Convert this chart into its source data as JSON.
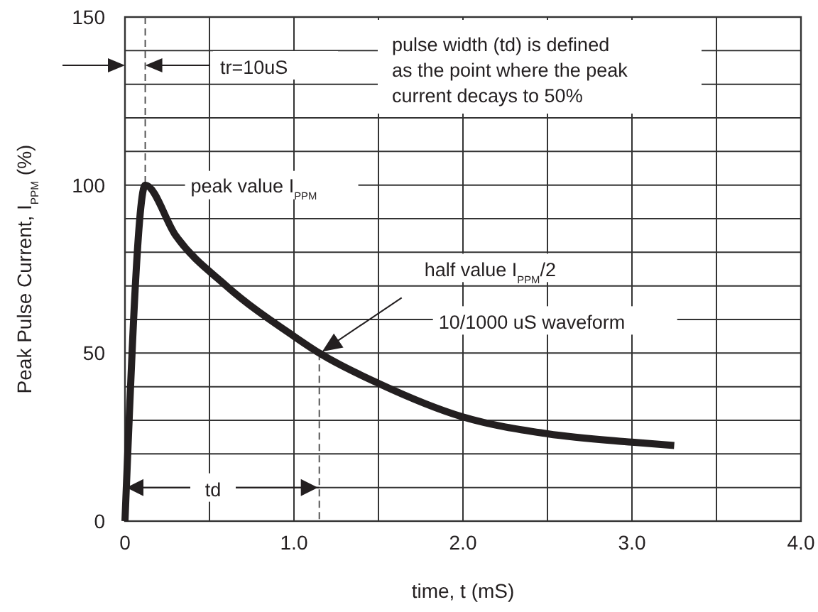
{
  "chart_data": {
    "type": "line",
    "xlabel": "time, t (mS)",
    "ylabel": "Peak Pulse Current, I$_{PPM}$ (%)",
    "xlim": [
      0,
      4
    ],
    "ylim": [
      0,
      150
    ],
    "xticks": [
      0,
      {
        "value": 0.5,
        "label": null
      },
      {
        "value": 1,
        "label": "1.0"
      },
      {
        "value": 1.5,
        "label": null
      },
      {
        "value": 2,
        "label": "2.0"
      },
      {
        "value": 2.5,
        "label": null
      },
      {
        "value": 3,
        "label": "3.0"
      },
      {
        "value": 3.5,
        "label": null
      },
      {
        "value": 4,
        "label": "4.0"
      }
    ],
    "yticks": [
      0,
      {
        "value": 10,
        "label": null
      },
      {
        "value": 20,
        "label": null
      },
      {
        "value": 30,
        "label": null
      },
      {
        "value": 40,
        "label": null
      },
      50,
      {
        "value": 60,
        "label": null
      },
      {
        "value": 70,
        "label": null
      },
      {
        "value": 80,
        "label": null
      },
      {
        "value": 90,
        "label": null
      },
      100,
      {
        "value": 110,
        "label": null
      },
      {
        "value": 120,
        "label": null
      },
      {
        "value": 130,
        "label": null
      },
      {
        "value": 140,
        "label": null
      },
      150
    ],
    "grid": true,
    "marker": "none",
    "line_style": "solid",
    "series": [
      {
        "color": "#231f20",
        "x": [
          0,
          0.12,
          0.3,
          0.6,
          1.0,
          1.15,
          1.5,
          2.0,
          2.5,
          3.0,
          3.25
        ],
        "values": [
          0,
          100,
          85,
          70,
          55,
          50,
          41,
          31,
          26,
          23.5,
          22.5
        ]
      }
    ],
    "annotations": [
      "tr=10uS",
      "pulse width (td) is defined\nas the point where the peak\ncurrent decays to 50%",
      "peak value I$_{PPM}$",
      "half value I$_{PPM}$/2",
      "10/1000 uS waveform",
      "td"
    ]
  }
}
